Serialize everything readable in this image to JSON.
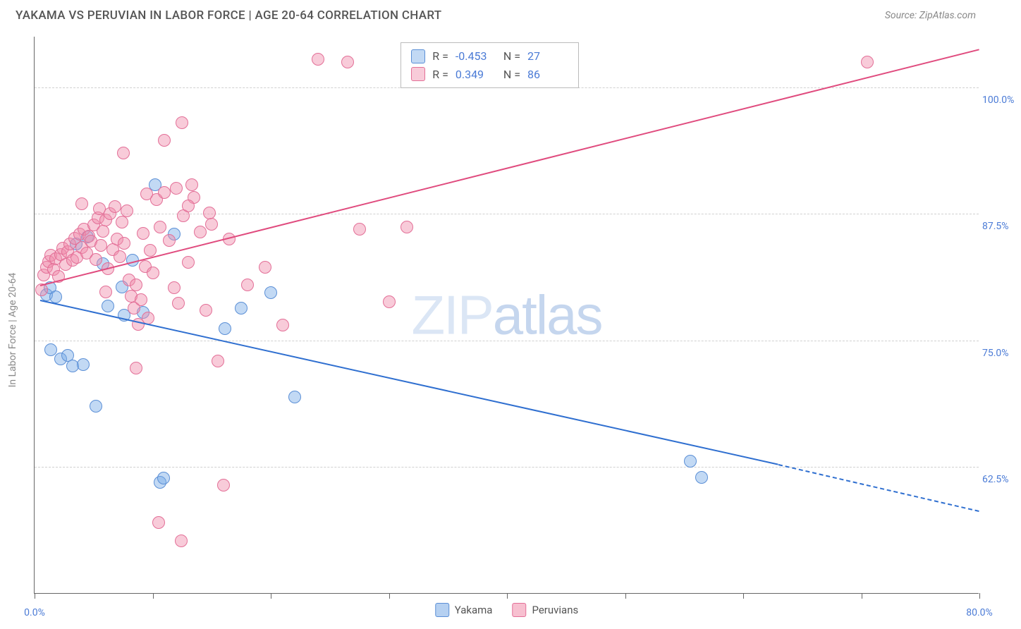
{
  "title": "YAKAMA VS PERUVIAN IN LABOR FORCE | AGE 20-64 CORRELATION CHART",
  "source": "Source: ZipAtlas.com",
  "y_axis_title": "In Labor Force | Age 20-64",
  "watermark_a": "ZIP",
  "watermark_b": "atlas",
  "chart": {
    "type": "scatter",
    "xlim": [
      0,
      80
    ],
    "ylim": [
      50,
      105
    ],
    "x_ticks": [
      0,
      10,
      20,
      30,
      40,
      50,
      60,
      70,
      80
    ],
    "x_tick_labels": {
      "0": "0.0%",
      "80": "80.0%"
    },
    "y_ticks": [
      62.5,
      75.0,
      87.5,
      100.0
    ],
    "y_tick_labels": [
      "62.5%",
      "75.0%",
      "87.5%",
      "100.0%"
    ],
    "grid_color": "#d0d0d0",
    "background_color": "#ffffff",
    "marker_radius": 9,
    "series": [
      {
        "name": "Yakama",
        "fill": "rgba(120,170,230,0.45)",
        "stroke": "#5b8fd6",
        "line_color": "#2f6fd0",
        "R": "-0.453",
        "N": "27",
        "trend": {
          "x0": 0.5,
          "y0": 79,
          "x1": 63,
          "y1": 62.8,
          "dash_to_x": 80,
          "dash_to_y": 58.2
        },
        "points": [
          [
            1,
            79.5
          ],
          [
            1.3,
            80.2
          ],
          [
            1.8,
            79.3
          ],
          [
            1.4,
            74.1
          ],
          [
            2.2,
            73.2
          ],
          [
            2.8,
            73.5
          ],
          [
            3.2,
            72.5
          ],
          [
            4.1,
            72.6
          ],
          [
            10.2,
            90.4
          ],
          [
            3.5,
            84.5
          ],
          [
            4.5,
            85.2
          ],
          [
            5.8,
            82.6
          ],
          [
            7.4,
            80.3
          ],
          [
            11.8,
            85.5
          ],
          [
            6.2,
            78.4
          ],
          [
            7.6,
            77.5
          ],
          [
            9.2,
            77.8
          ],
          [
            5.2,
            68.5
          ],
          [
            10.6,
            61.0
          ],
          [
            10.9,
            61.4
          ],
          [
            22.0,
            69.4
          ],
          [
            17.5,
            78.2
          ],
          [
            16.1,
            76.2
          ],
          [
            20.0,
            79.7
          ],
          [
            55.5,
            63.1
          ],
          [
            56.5,
            61.5
          ],
          [
            8.3,
            82.9
          ]
        ]
      },
      {
        "name": "Peruvians",
        "fill": "rgba(240,140,170,0.45)",
        "stroke": "#e36f97",
        "line_color": "#e04b7e",
        "R": "0.349",
        "N": "86",
        "trend": {
          "x0": 0.5,
          "y0": 80.5,
          "x1": 80,
          "y1": 103.8
        },
        "points": [
          [
            0.6,
            80.0
          ],
          [
            0.8,
            81.5
          ],
          [
            1.0,
            82.2
          ],
          [
            1.2,
            82.8
          ],
          [
            1.4,
            83.4
          ],
          [
            1.6,
            82.0
          ],
          [
            1.8,
            83.1
          ],
          [
            2.0,
            81.3
          ],
          [
            2.2,
            83.5
          ],
          [
            2.4,
            84.1
          ],
          [
            2.6,
            82.5
          ],
          [
            2.8,
            83.8
          ],
          [
            3.0,
            84.5
          ],
          [
            3.2,
            82.9
          ],
          [
            3.4,
            85.1
          ],
          [
            3.6,
            83.2
          ],
          [
            3.8,
            85.5
          ],
          [
            4.0,
            84.2
          ],
          [
            4.2,
            86.0
          ],
          [
            4.4,
            83.6
          ],
          [
            4.6,
            85.3
          ],
          [
            4.8,
            84.8
          ],
          [
            5.0,
            86.4
          ],
          [
            5.2,
            83.0
          ],
          [
            5.4,
            87.1
          ],
          [
            5.6,
            84.4
          ],
          [
            5.8,
            85.8
          ],
          [
            6.0,
            86.9
          ],
          [
            6.2,
            82.1
          ],
          [
            6.4,
            87.5
          ],
          [
            6.6,
            84.0
          ],
          [
            6.8,
            88.2
          ],
          [
            7.0,
            85.0
          ],
          [
            7.2,
            83.3
          ],
          [
            7.4,
            86.7
          ],
          [
            7.6,
            84.6
          ],
          [
            7.8,
            87.8
          ],
          [
            8.0,
            81.0
          ],
          [
            8.2,
            79.4
          ],
          [
            8.4,
            78.2
          ],
          [
            8.6,
            80.5
          ],
          [
            8.8,
            76.6
          ],
          [
            9.0,
            79.0
          ],
          [
            9.2,
            85.6
          ],
          [
            9.4,
            82.3
          ],
          [
            9.6,
            77.2
          ],
          [
            9.8,
            83.9
          ],
          [
            10.0,
            81.7
          ],
          [
            10.3,
            88.9
          ],
          [
            10.6,
            86.2
          ],
          [
            11.0,
            89.6
          ],
          [
            11.4,
            84.9
          ],
          [
            11.8,
            80.2
          ],
          [
            12.2,
            78.7
          ],
          [
            12.6,
            87.3
          ],
          [
            13.0,
            82.7
          ],
          [
            13.5,
            89.1
          ],
          [
            14.0,
            85.7
          ],
          [
            14.5,
            78.0
          ],
          [
            15.0,
            86.5
          ],
          [
            15.5,
            73.0
          ],
          [
            16.0,
            60.7
          ],
          [
            4.0,
            88.5
          ],
          [
            5.5,
            88.0
          ],
          [
            7.5,
            93.5
          ],
          [
            9.5,
            89.5
          ],
          [
            11.0,
            94.8
          ],
          [
            12.0,
            90.0
          ],
          [
            13.0,
            88.3
          ],
          [
            14.8,
            87.6
          ],
          [
            10.5,
            57.0
          ],
          [
            12.4,
            55.2
          ],
          [
            16.5,
            85.0
          ],
          [
            18.0,
            80.5
          ],
          [
            19.5,
            82.2
          ],
          [
            21.0,
            76.5
          ],
          [
            24.0,
            102.8
          ],
          [
            26.5,
            102.5
          ],
          [
            27.5,
            86.0
          ],
          [
            30.0,
            78.8
          ],
          [
            12.5,
            96.5
          ],
          [
            13.3,
            90.4
          ],
          [
            8.6,
            72.3
          ],
          [
            6.0,
            79.8
          ],
          [
            70.5,
            102.5
          ],
          [
            31.5,
            86.2
          ]
        ]
      }
    ]
  },
  "colors": {
    "blue_text": "#4b7bd6",
    "axis": "#666666"
  },
  "legend": [
    {
      "label": "Yakama",
      "fill": "rgba(120,170,230,0.55)",
      "stroke": "#5b8fd6"
    },
    {
      "label": "Peruvians",
      "fill": "rgba(240,140,170,0.55)",
      "stroke": "#e36f97"
    }
  ]
}
